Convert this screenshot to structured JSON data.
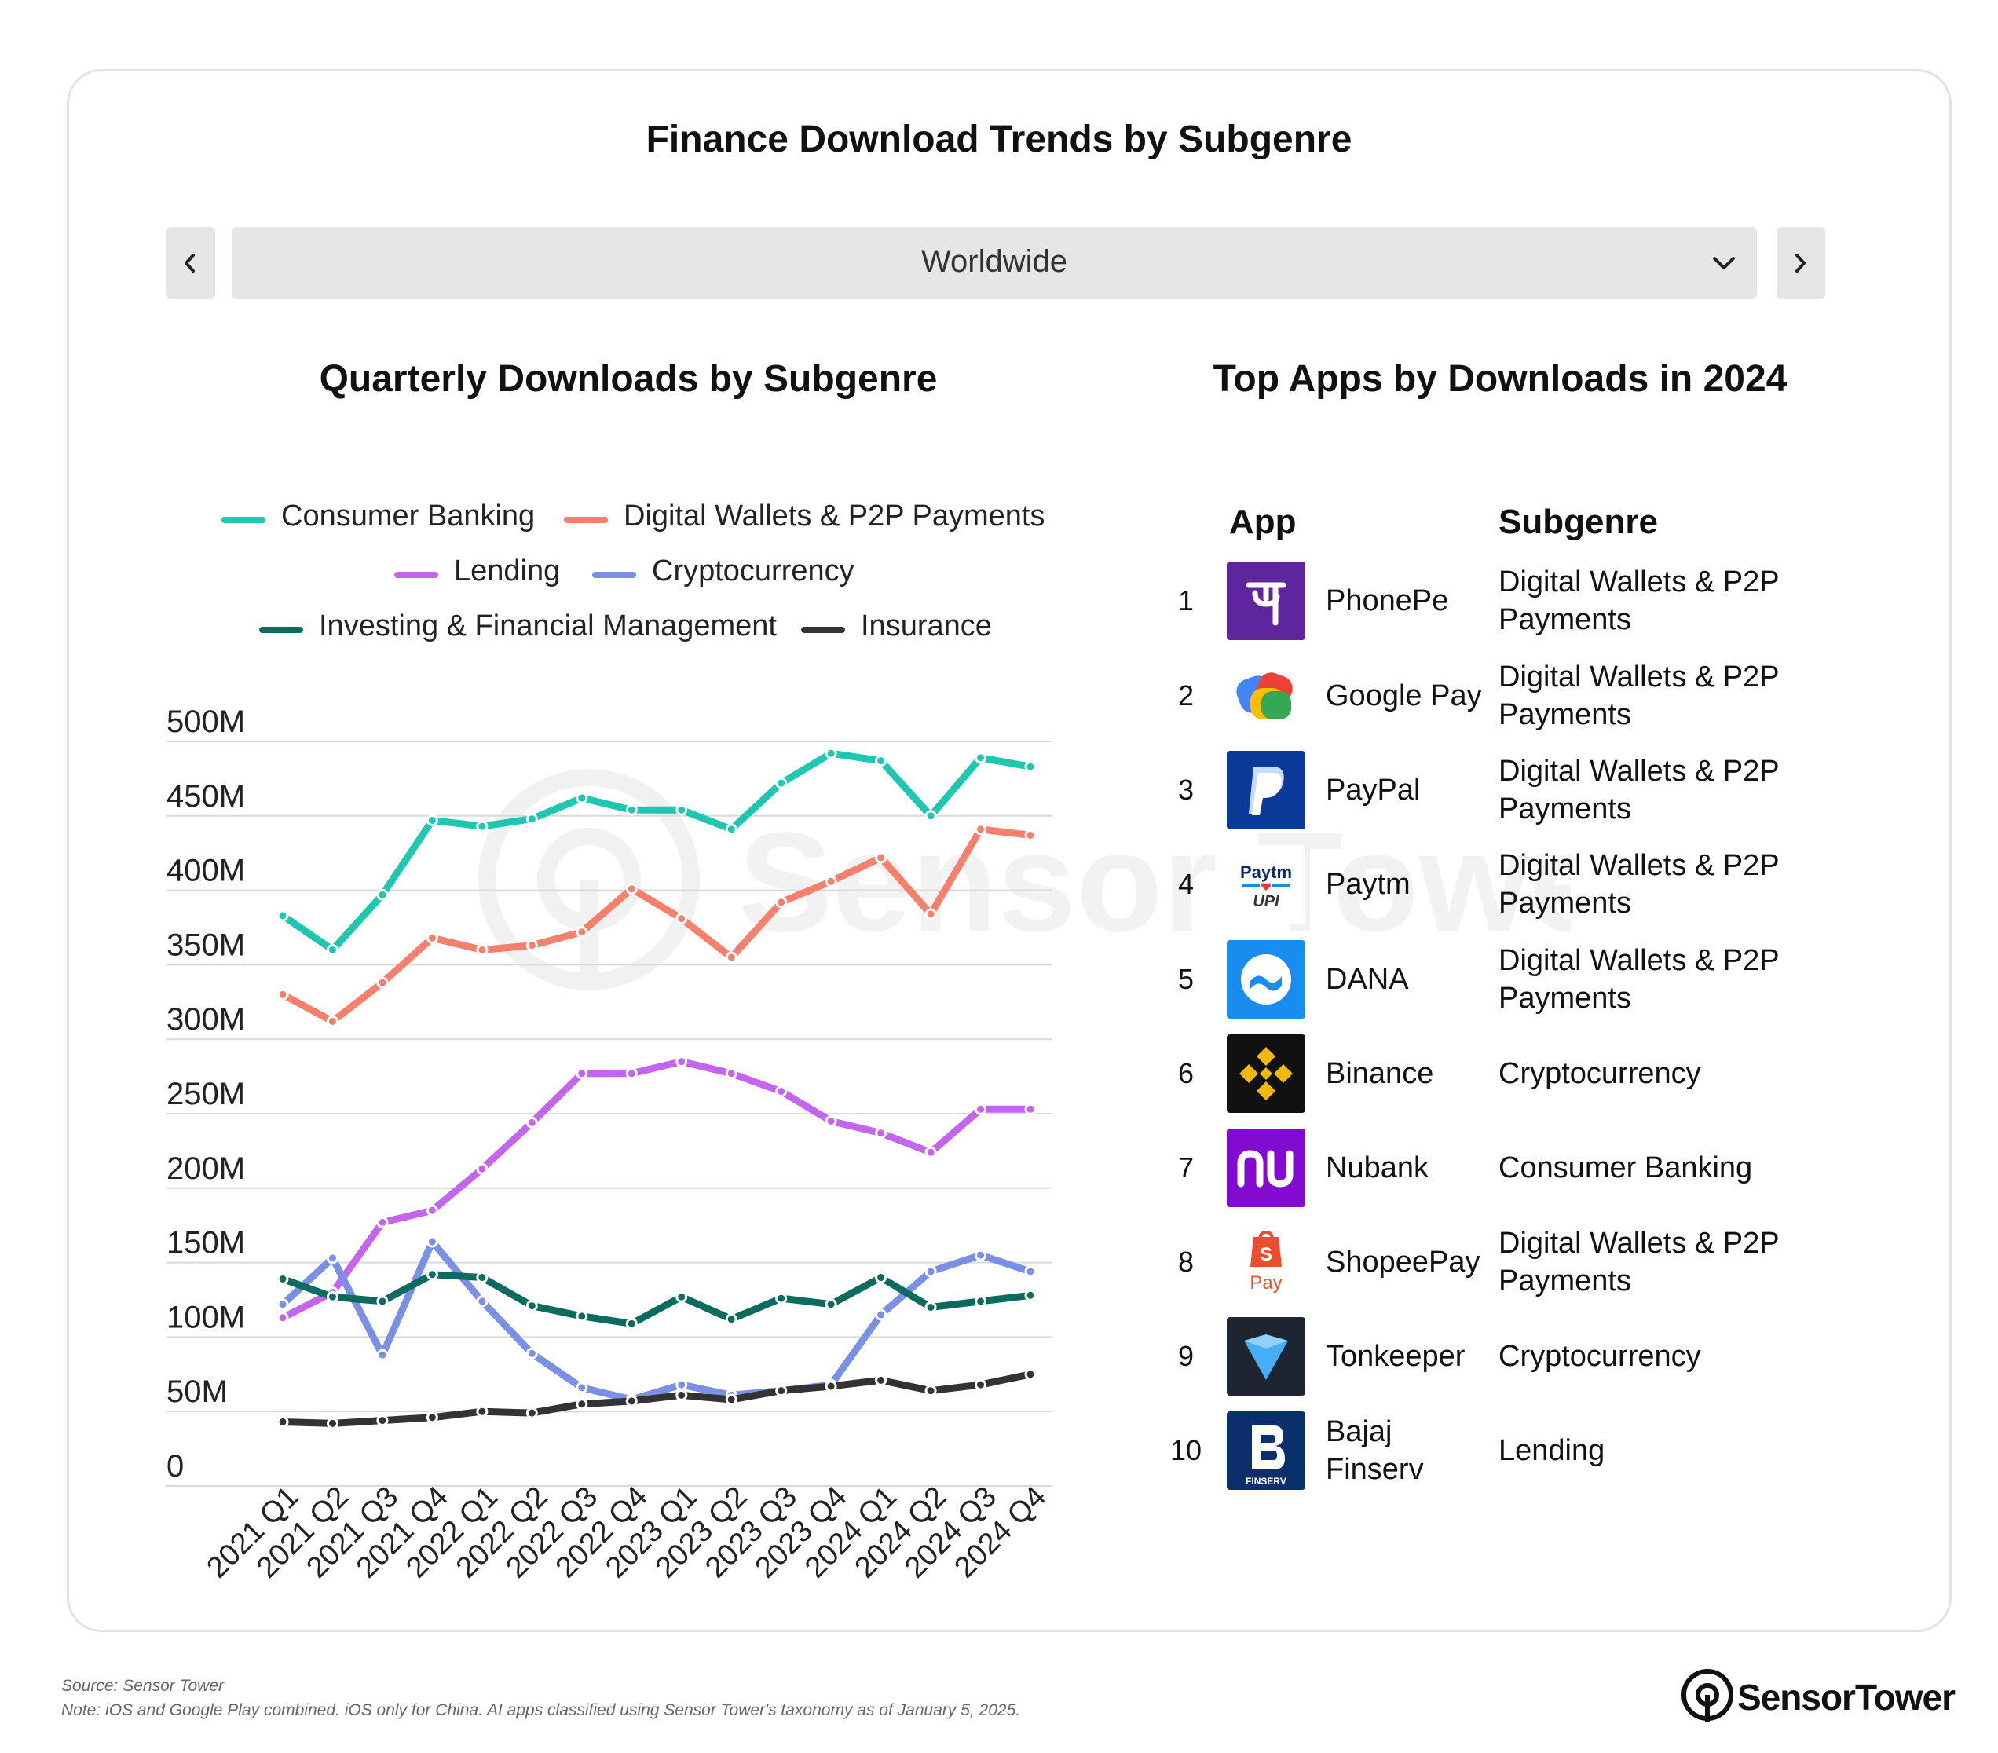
{
  "title": "Finance Download Trends by Subgenre",
  "region": {
    "selected": "Worldwide"
  },
  "line_chart_title": "Quarterly Downloads by Subgenre",
  "table_title": "Top Apps by Downloads in 2024",
  "table": {
    "col_app": "App",
    "col_subgenre": "Subgenre",
    "rows": [
      {
        "rank": "1",
        "name": "PhonePe",
        "subgenre": "Digital Wallets & P2P Payments",
        "icon": "phonepe-logo"
      },
      {
        "rank": "2",
        "name": "Google Pay",
        "subgenre": "Digital Wallets & P2P Payments",
        "icon": "google-pay-logo"
      },
      {
        "rank": "3",
        "name": "PayPal",
        "subgenre": "Digital Wallets & P2P Payments",
        "icon": "paypal-logo"
      },
      {
        "rank": "4",
        "name": "Paytm",
        "subgenre": "Digital Wallets & P2P Payments",
        "icon": "paytm-logo"
      },
      {
        "rank": "5",
        "name": "DANA",
        "subgenre": "Digital Wallets & P2P Payments",
        "icon": "dana-logo"
      },
      {
        "rank": "6",
        "name": "Binance",
        "subgenre": "Cryptocurrency",
        "icon": "binance-logo"
      },
      {
        "rank": "7",
        "name": "Nubank",
        "subgenre": "Consumer Banking",
        "icon": "nubank-logo"
      },
      {
        "rank": "8",
        "name": "ShopeePay",
        "subgenre": "Digital Wallets & P2P Payments",
        "icon": "shopeepay-logo"
      },
      {
        "rank": "9",
        "name": "Tonkeeper",
        "subgenre": "Cryptocurrency",
        "icon": "tonkeeper-logo"
      },
      {
        "rank": "10",
        "name": "Bajaj Finserv",
        "subgenre": "Lending",
        "icon": "bajaj-finserv-logo"
      }
    ]
  },
  "footer": {
    "source": "Source: Sensor Tower",
    "note": "Note: iOS and Google Play combined. iOS only for China. AI apps classified using Sensor Tower's taxonomy as of January 5, 2025."
  },
  "brand": "SensorTower",
  "watermark": "Sensor Tower",
  "chart_data": {
    "type": "line",
    "title": "Quarterly Downloads by Subgenre",
    "categories": [
      "2021 Q1",
      "2021 Q2",
      "2021 Q3",
      "2021 Q4",
      "2022 Q1",
      "2022 Q2",
      "2022 Q3",
      "2022 Q4",
      "2023 Q1",
      "2023 Q2",
      "2023 Q3",
      "2023 Q4",
      "2024 Q1",
      "2024 Q2",
      "2024 Q3",
      "2024 Q4"
    ],
    "ylim": [
      0,
      500000000
    ],
    "yticks": [
      {
        "value": 500000000,
        "label": "500M"
      },
      {
        "value": 450000000,
        "label": "450M"
      },
      {
        "value": 400000000,
        "label": "400M"
      },
      {
        "value": 350000000,
        "label": "350M"
      },
      {
        "value": 300000000,
        "label": "300M"
      },
      {
        "value": 250000000,
        "label": "250M"
      },
      {
        "value": 200000000,
        "label": "200M"
      },
      {
        "value": 150000000,
        "label": "150M"
      },
      {
        "value": 100000000,
        "label": "100M"
      },
      {
        "value": 50000000,
        "label": "50M"
      },
      {
        "value": 0,
        "label": "0"
      }
    ],
    "grid": true,
    "legend_position": "top",
    "series": [
      {
        "name": "Consumer Banking",
        "color": "#1ec8b0",
        "values": [
          383000000,
          360000000,
          397000000,
          447000000,
          443000000,
          448000000,
          462000000,
          454000000,
          454000000,
          441000000,
          472000000,
          492000000,
          487000000,
          450000000,
          489000000,
          483000000
        ]
      },
      {
        "name": "Digital Wallets & P2P Payments",
        "color": "#f7806c",
        "values": [
          330000000,
          312000000,
          338000000,
          368000000,
          360000000,
          363000000,
          372000000,
          401000000,
          381000000,
          355000000,
          392000000,
          406000000,
          422000000,
          384000000,
          441000000,
          437000000
        ]
      },
      {
        "name": "Lending",
        "color": "#c465ef",
        "values": [
          113000000,
          130000000,
          177000000,
          185000000,
          213000000,
          244000000,
          277000000,
          277000000,
          285000000,
          277000000,
          265000000,
          245000000,
          237000000,
          224000000,
          253000000,
          253000000
        ]
      },
      {
        "name": "Cryptocurrency",
        "color": "#7990e6",
        "values": [
          122000000,
          153000000,
          88000000,
          164000000,
          124000000,
          89000000,
          66000000,
          58000000,
          68000000,
          61000000,
          64000000,
          68000000,
          115000000,
          144000000,
          155000000,
          144000000
        ]
      },
      {
        "name": "Investing & Financial Management",
        "color": "#0b6b5e",
        "values": [
          139000000,
          127000000,
          124000000,
          142000000,
          140000000,
          121000000,
          114000000,
          109000000,
          127000000,
          112000000,
          126000000,
          122000000,
          140000000,
          120000000,
          124000000,
          128000000
        ]
      },
      {
        "name": "Insurance",
        "color": "#333333",
        "values": [
          43000000,
          42000000,
          44000000,
          46000000,
          50000000,
          49000000,
          55000000,
          57000000,
          61000000,
          58000000,
          64000000,
          67000000,
          71000000,
          64000000,
          68000000,
          75000000
        ]
      }
    ]
  }
}
